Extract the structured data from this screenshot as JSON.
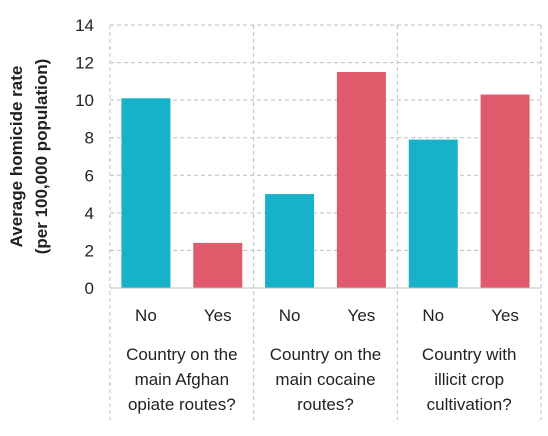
{
  "chart_data": {
    "type": "bar",
    "ylabel_lines": [
      "Average homicide rate",
      "(per 100,000 population)"
    ],
    "ylim": [
      0,
      14
    ],
    "yticks": [
      0,
      2,
      4,
      6,
      8,
      10,
      12,
      14
    ],
    "grid": true,
    "groups": [
      {
        "label_lines": [
          "Country on the",
          "main Afghan",
          "opiate routes?"
        ],
        "bars": [
          {
            "category": "No",
            "value": 10.1,
            "color": "#17b2c9"
          },
          {
            "category": "Yes",
            "value": 2.4,
            "color": "#e05a6b"
          }
        ]
      },
      {
        "label_lines": [
          "Country on the",
          "main cocaine",
          "routes?"
        ],
        "bars": [
          {
            "category": "No",
            "value": 5.0,
            "color": "#17b2c9"
          },
          {
            "category": "Yes",
            "value": 11.5,
            "color": "#e05a6b"
          }
        ]
      },
      {
        "label_lines": [
          "Country with",
          "illicit crop",
          "cultivation?"
        ],
        "bars": [
          {
            "category": "No",
            "value": 7.9,
            "color": "#17b2c9"
          },
          {
            "category": "Yes",
            "value": 10.3,
            "color": "#e05a6b"
          }
        ]
      }
    ]
  }
}
